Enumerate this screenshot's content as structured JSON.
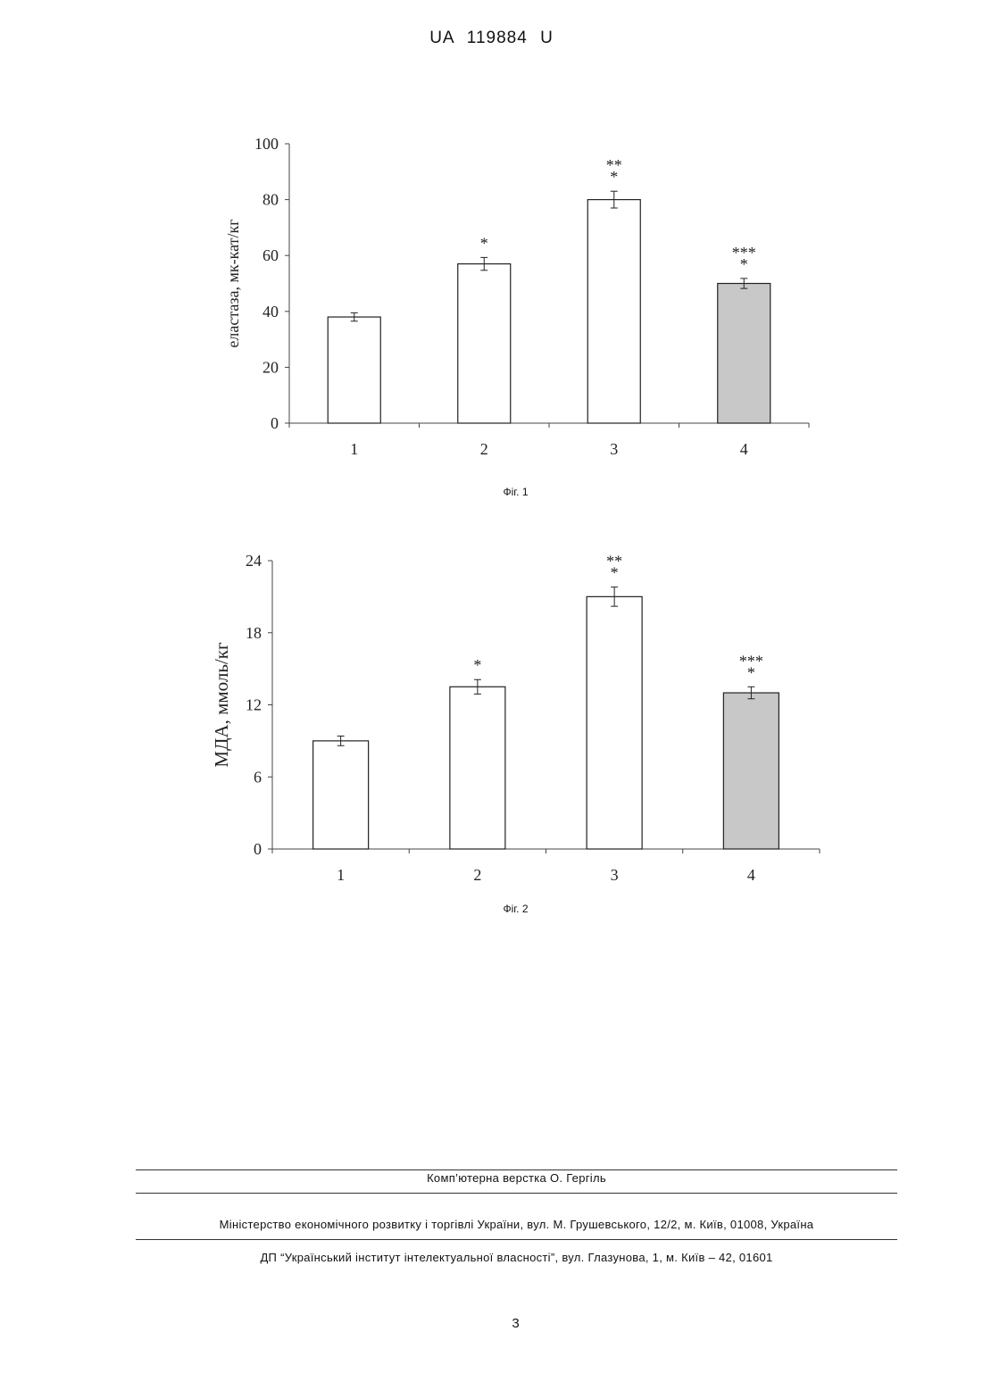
{
  "header": {
    "patent_number": "UA   119884   U"
  },
  "chart_data": [
    {
      "type": "bar",
      "caption": "Фіг. 1",
      "categories": [
        "1",
        "2",
        "3",
        "4"
      ],
      "values": [
        38,
        57,
        80,
        50
      ],
      "errors": [
        1.5,
        2.3,
        3.0,
        1.8
      ],
      "significance": [
        "",
        "*",
        "**\n*",
        "***\n*"
      ],
      "ylabel": "еластаза, мк-кат/кг",
      "ylim": [
        0,
        100
      ],
      "yticks": [
        0,
        20,
        40,
        60,
        80,
        100
      ],
      "bar_colors": [
        "#ffffff",
        "#ffffff",
        "#ffffff",
        "#c8c8c8"
      ]
    },
    {
      "type": "bar",
      "caption": "Фіг. 2",
      "categories": [
        "1",
        "2",
        "3",
        "4"
      ],
      "values": [
        9.0,
        13.5,
        21.0,
        13.0
      ],
      "errors": [
        0.4,
        0.6,
        0.8,
        0.5
      ],
      "significance": [
        "",
        "*",
        "**\n*",
        "***\n*"
      ],
      "ylabel": "МДА, ммоль/кг",
      "ylim": [
        0,
        24
      ],
      "yticks": [
        0,
        6,
        12,
        18,
        24
      ],
      "bar_colors": [
        "#ffffff",
        "#ffffff",
        "#ffffff",
        "#c8c8c8"
      ]
    }
  ],
  "footer": {
    "layout": "Комп’ютерна верстка  О. Гергіль",
    "ministry": "Міністерство економічного розвитку і торгівлі України, вул. М. Грушевського, 12/2, м. Київ, 01008, Україна",
    "institute": "ДП “Український інститут інтелектуальної власності”, вул. Глазунова, 1, м. Київ – 42, 01601"
  },
  "page_number": "3"
}
